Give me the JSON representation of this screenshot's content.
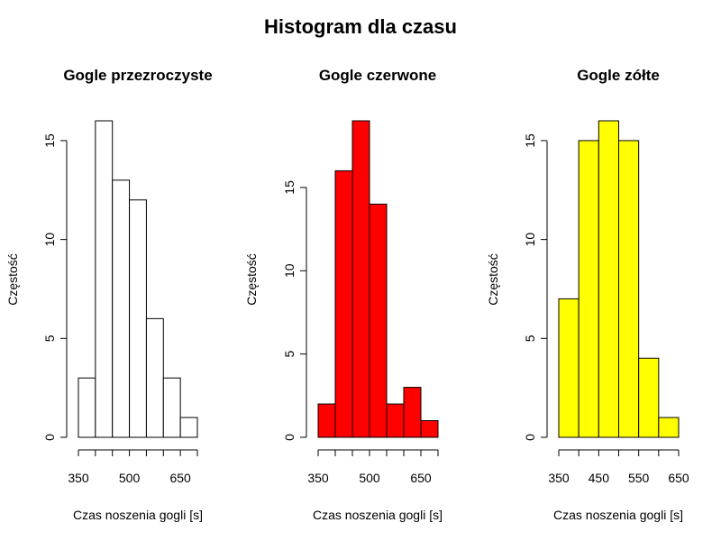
{
  "figure_title": "Histogram dla czasu",
  "chart_data": [
    {
      "type": "bar",
      "title": "Gogle przezroczyste",
      "xlabel": "Czas noszenia gogli [s]",
      "ylabel": "Częstość",
      "fill_color": "#ffffff",
      "bin_edges": [
        350,
        400,
        450,
        500,
        550,
        600,
        650,
        700
      ],
      "values": [
        3,
        16,
        13,
        12,
        6,
        3,
        1
      ],
      "x_ticks": [
        350,
        400,
        450,
        500,
        550,
        600,
        650,
        700
      ],
      "x_tick_labels": [
        "350",
        "",
        "",
        "500",
        "",
        "",
        "650",
        ""
      ],
      "y_ticks": [
        0,
        5,
        10,
        15
      ],
      "y_tick_labels": [
        "0",
        "5",
        "10",
        "15"
      ],
      "ylim": [
        0,
        16
      ]
    },
    {
      "type": "bar",
      "title": "Gogle czerwone",
      "xlabel": "Czas noszenia gogli [s]",
      "ylabel": "Częstość",
      "fill_color": "#ff0000",
      "bin_edges": [
        350,
        400,
        450,
        500,
        550,
        600,
        650,
        700
      ],
      "values": [
        2,
        16,
        19,
        14,
        2,
        3,
        1
      ],
      "x_ticks": [
        350,
        400,
        450,
        500,
        550,
        600,
        650,
        700
      ],
      "x_tick_labels": [
        "350",
        "",
        "",
        "500",
        "",
        "",
        "650",
        ""
      ],
      "y_ticks": [
        0,
        5,
        10,
        15
      ],
      "y_tick_labels": [
        "0",
        "5",
        "10",
        "15"
      ],
      "ylim": [
        0,
        19
      ]
    },
    {
      "type": "bar",
      "title": "Gogle zółte",
      "xlabel": "Czas noszenia gogli [s]",
      "ylabel": "Częstość",
      "fill_color": "#ffff00",
      "bin_edges": [
        350,
        400,
        450,
        500,
        550,
        600,
        650
      ],
      "values": [
        7,
        15,
        16,
        15,
        4,
        1
      ],
      "x_ticks": [
        350,
        400,
        450,
        500,
        550,
        600,
        650
      ],
      "x_tick_labels": [
        "350",
        "",
        "450",
        "",
        "550",
        "",
        "650"
      ],
      "y_ticks": [
        0,
        5,
        10,
        15
      ],
      "y_tick_labels": [
        "0",
        "5",
        "10",
        "15"
      ],
      "ylim": [
        0,
        16
      ]
    }
  ]
}
